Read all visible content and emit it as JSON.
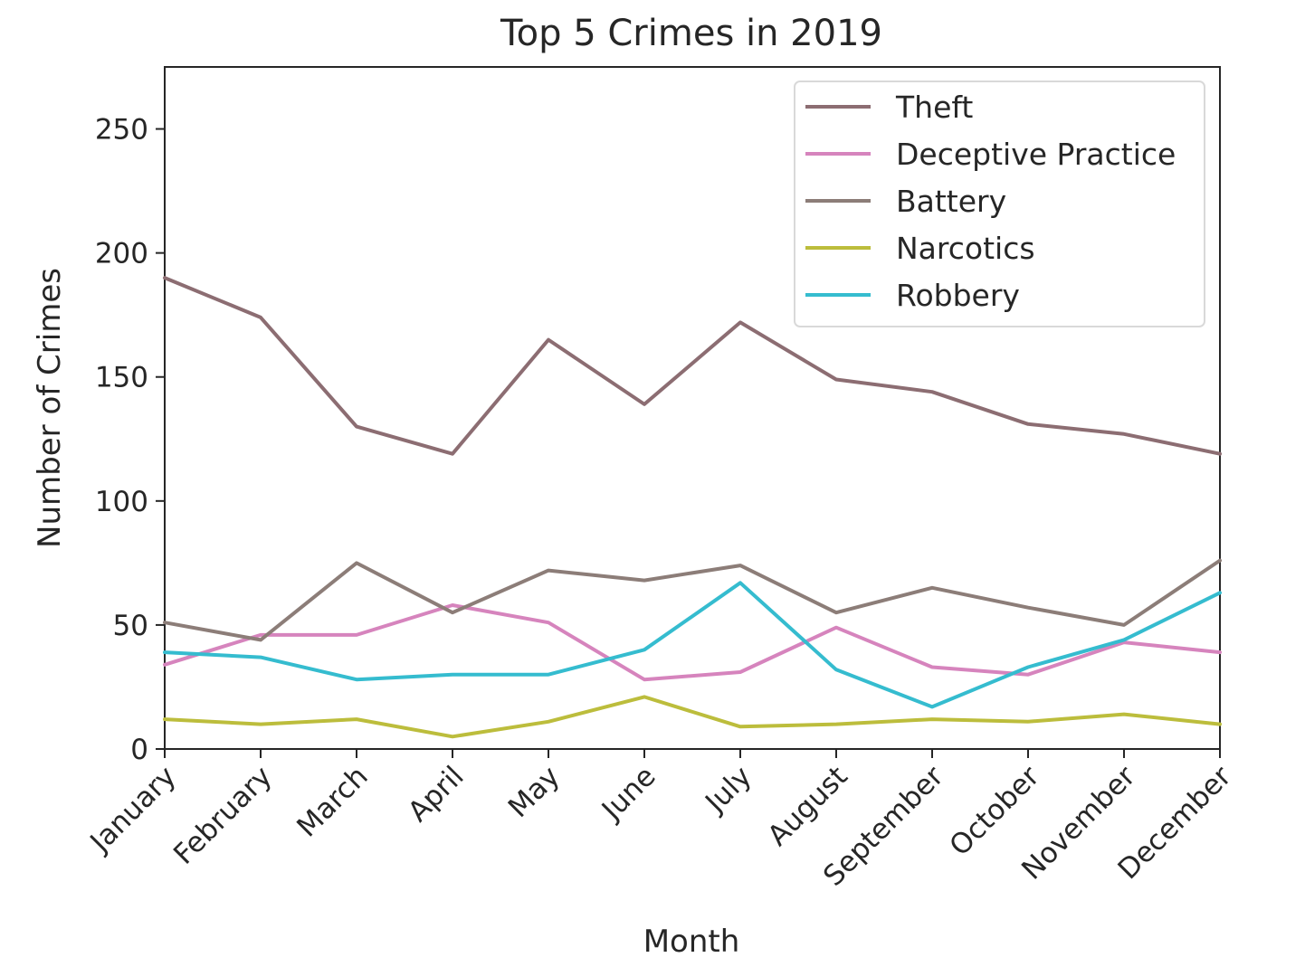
{
  "chart_data": {
    "type": "line",
    "title": "Top 5 Crimes in 2019",
    "xlabel": "Month",
    "ylabel": "Number of Crimes",
    "categories": [
      "January",
      "February",
      "March",
      "April",
      "May",
      "June",
      "July",
      "August",
      "September",
      "October",
      "November",
      "December"
    ],
    "ylim": [
      0,
      275
    ],
    "yticks": [
      0,
      50,
      100,
      150,
      200,
      250
    ],
    "grid": false,
    "legend_position": "top-right",
    "series": [
      {
        "name": "Theft",
        "color": "#8c6d72",
        "values": [
          190,
          174,
          130,
          119,
          165,
          139,
          172,
          149,
          144,
          131,
          127,
          119
        ]
      },
      {
        "name": "Deceptive Practice",
        "color": "#d684bd",
        "values": [
          34,
          46,
          46,
          58,
          51,
          28,
          31,
          49,
          33,
          30,
          43,
          39
        ]
      },
      {
        "name": "Battery",
        "color": "#8c7d78",
        "values": [
          51,
          44,
          75,
          55,
          72,
          68,
          74,
          55,
          65,
          57,
          50,
          76
        ]
      },
      {
        "name": "Narcotics",
        "color": "#bcbd3c",
        "values": [
          12,
          10,
          12,
          5,
          11,
          21,
          9,
          10,
          12,
          11,
          14,
          10
        ]
      },
      {
        "name": "Robbery",
        "color": "#35bccf",
        "values": [
          39,
          37,
          28,
          30,
          30,
          40,
          67,
          32,
          17,
          33,
          44,
          63
        ]
      }
    ]
  }
}
